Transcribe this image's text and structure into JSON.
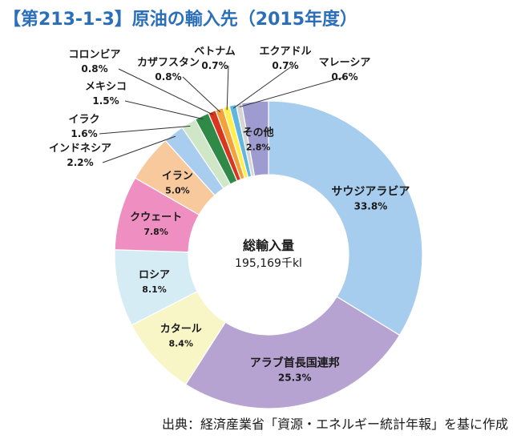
{
  "title": "【第213-1-3】原油の輸入先（2015年度）",
  "source": "出典：経済産業省「資源・エネルギー統計年報」を基に作成",
  "chart_data": {
    "type": "pie",
    "style": "donut",
    "center_title": "総輸入量",
    "center_value": "195,169千kl",
    "slices": [
      {
        "label": "サウジアラビア",
        "value": 33.8,
        "value_label": "33.8%",
        "color": "#a6cdee"
      },
      {
        "label": "アラブ首長国連邦",
        "value": 25.3,
        "value_label": "25.3%",
        "color": "#b7a3d1"
      },
      {
        "label": "カタール",
        "value": 8.4,
        "value_label": "8.4%",
        "color": "#f8f6c6"
      },
      {
        "label": "ロシア",
        "value": 8.1,
        "value_label": "8.1%",
        "color": "#d6ecf4"
      },
      {
        "label": "クウェート",
        "value": 7.8,
        "value_label": "7.8%",
        "color": "#ef8fc1"
      },
      {
        "label": "イラン",
        "value": 5.0,
        "value_label": "5.0%",
        "color": "#f9c99e"
      },
      {
        "label": "インドネシア",
        "value": 2.2,
        "value_label": "2.2%",
        "color": "#a9cdee"
      },
      {
        "label": "イラク",
        "value": 1.6,
        "value_label": "1.6%",
        "color": "#cfe6c7"
      },
      {
        "label": "メキシコ",
        "value": 1.5,
        "value_label": "1.5%",
        "color": "#2f8a47"
      },
      {
        "label": "コロンビア",
        "value": 0.8,
        "value_label": "0.8%",
        "color": "#d8361f"
      },
      {
        "label": "カザフスタン",
        "value": 0.8,
        "value_label": "0.8%",
        "color": "#f3a23b"
      },
      {
        "label": "ベトナム",
        "value": 0.7,
        "value_label": "0.7%",
        "color": "#fff04d"
      },
      {
        "label": "エクアドル",
        "value": 0.7,
        "value_label": "0.7%",
        "color": "#5fb6df"
      },
      {
        "label": "マレーシア",
        "value": 0.6,
        "value_label": "0.6%",
        "color": "#d5d5d5"
      },
      {
        "label": "その他",
        "value": 2.8,
        "value_label": "2.8%",
        "color": "#9e9bd0"
      }
    ]
  }
}
